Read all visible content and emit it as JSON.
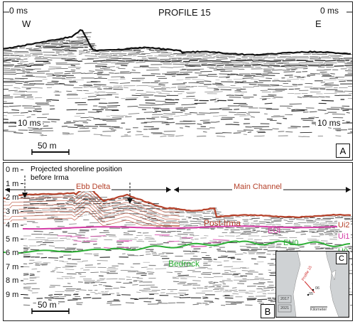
{
  "panel_a": {
    "title": "PROFILE 15",
    "top_left_ms": "0 ms",
    "top_right_ms": "0 ms",
    "bottom_left_ms": "10 ms",
    "bottom_right_ms": "10 ms",
    "west": "W",
    "east": "E",
    "scale": "50 m",
    "letter": "A"
  },
  "panel_b": {
    "shoreline_note": "Projected shoreline position before Irma",
    "ebb_delta": "Ebb Delta",
    "main_channel": "Main Channel",
    "depths": [
      "0 m",
      "1 m",
      "2 m",
      "3 m",
      "4 m",
      "5 m",
      "6 m",
      "7 m",
      "8 m",
      "9 m"
    ],
    "post_irma": "Post-Irma",
    "eui": "EUI",
    "eu0": "EU0",
    "bedrock": "Bedrock",
    "ui2": "Ui2",
    "ui1": "Ui1",
    "u0": "U0",
    "scale": "50 m",
    "letter": "B"
  },
  "inset": {
    "profile": "Profile 15",
    "p1": "06",
    "p2": "05",
    "year1": "2017",
    "year2": "2021",
    "scale": "Kilometer",
    "letter": "C"
  },
  "colors": {
    "post_irma": "#b5412a",
    "eui": "#d43ca6",
    "bedrock": "#2cae35"
  }
}
